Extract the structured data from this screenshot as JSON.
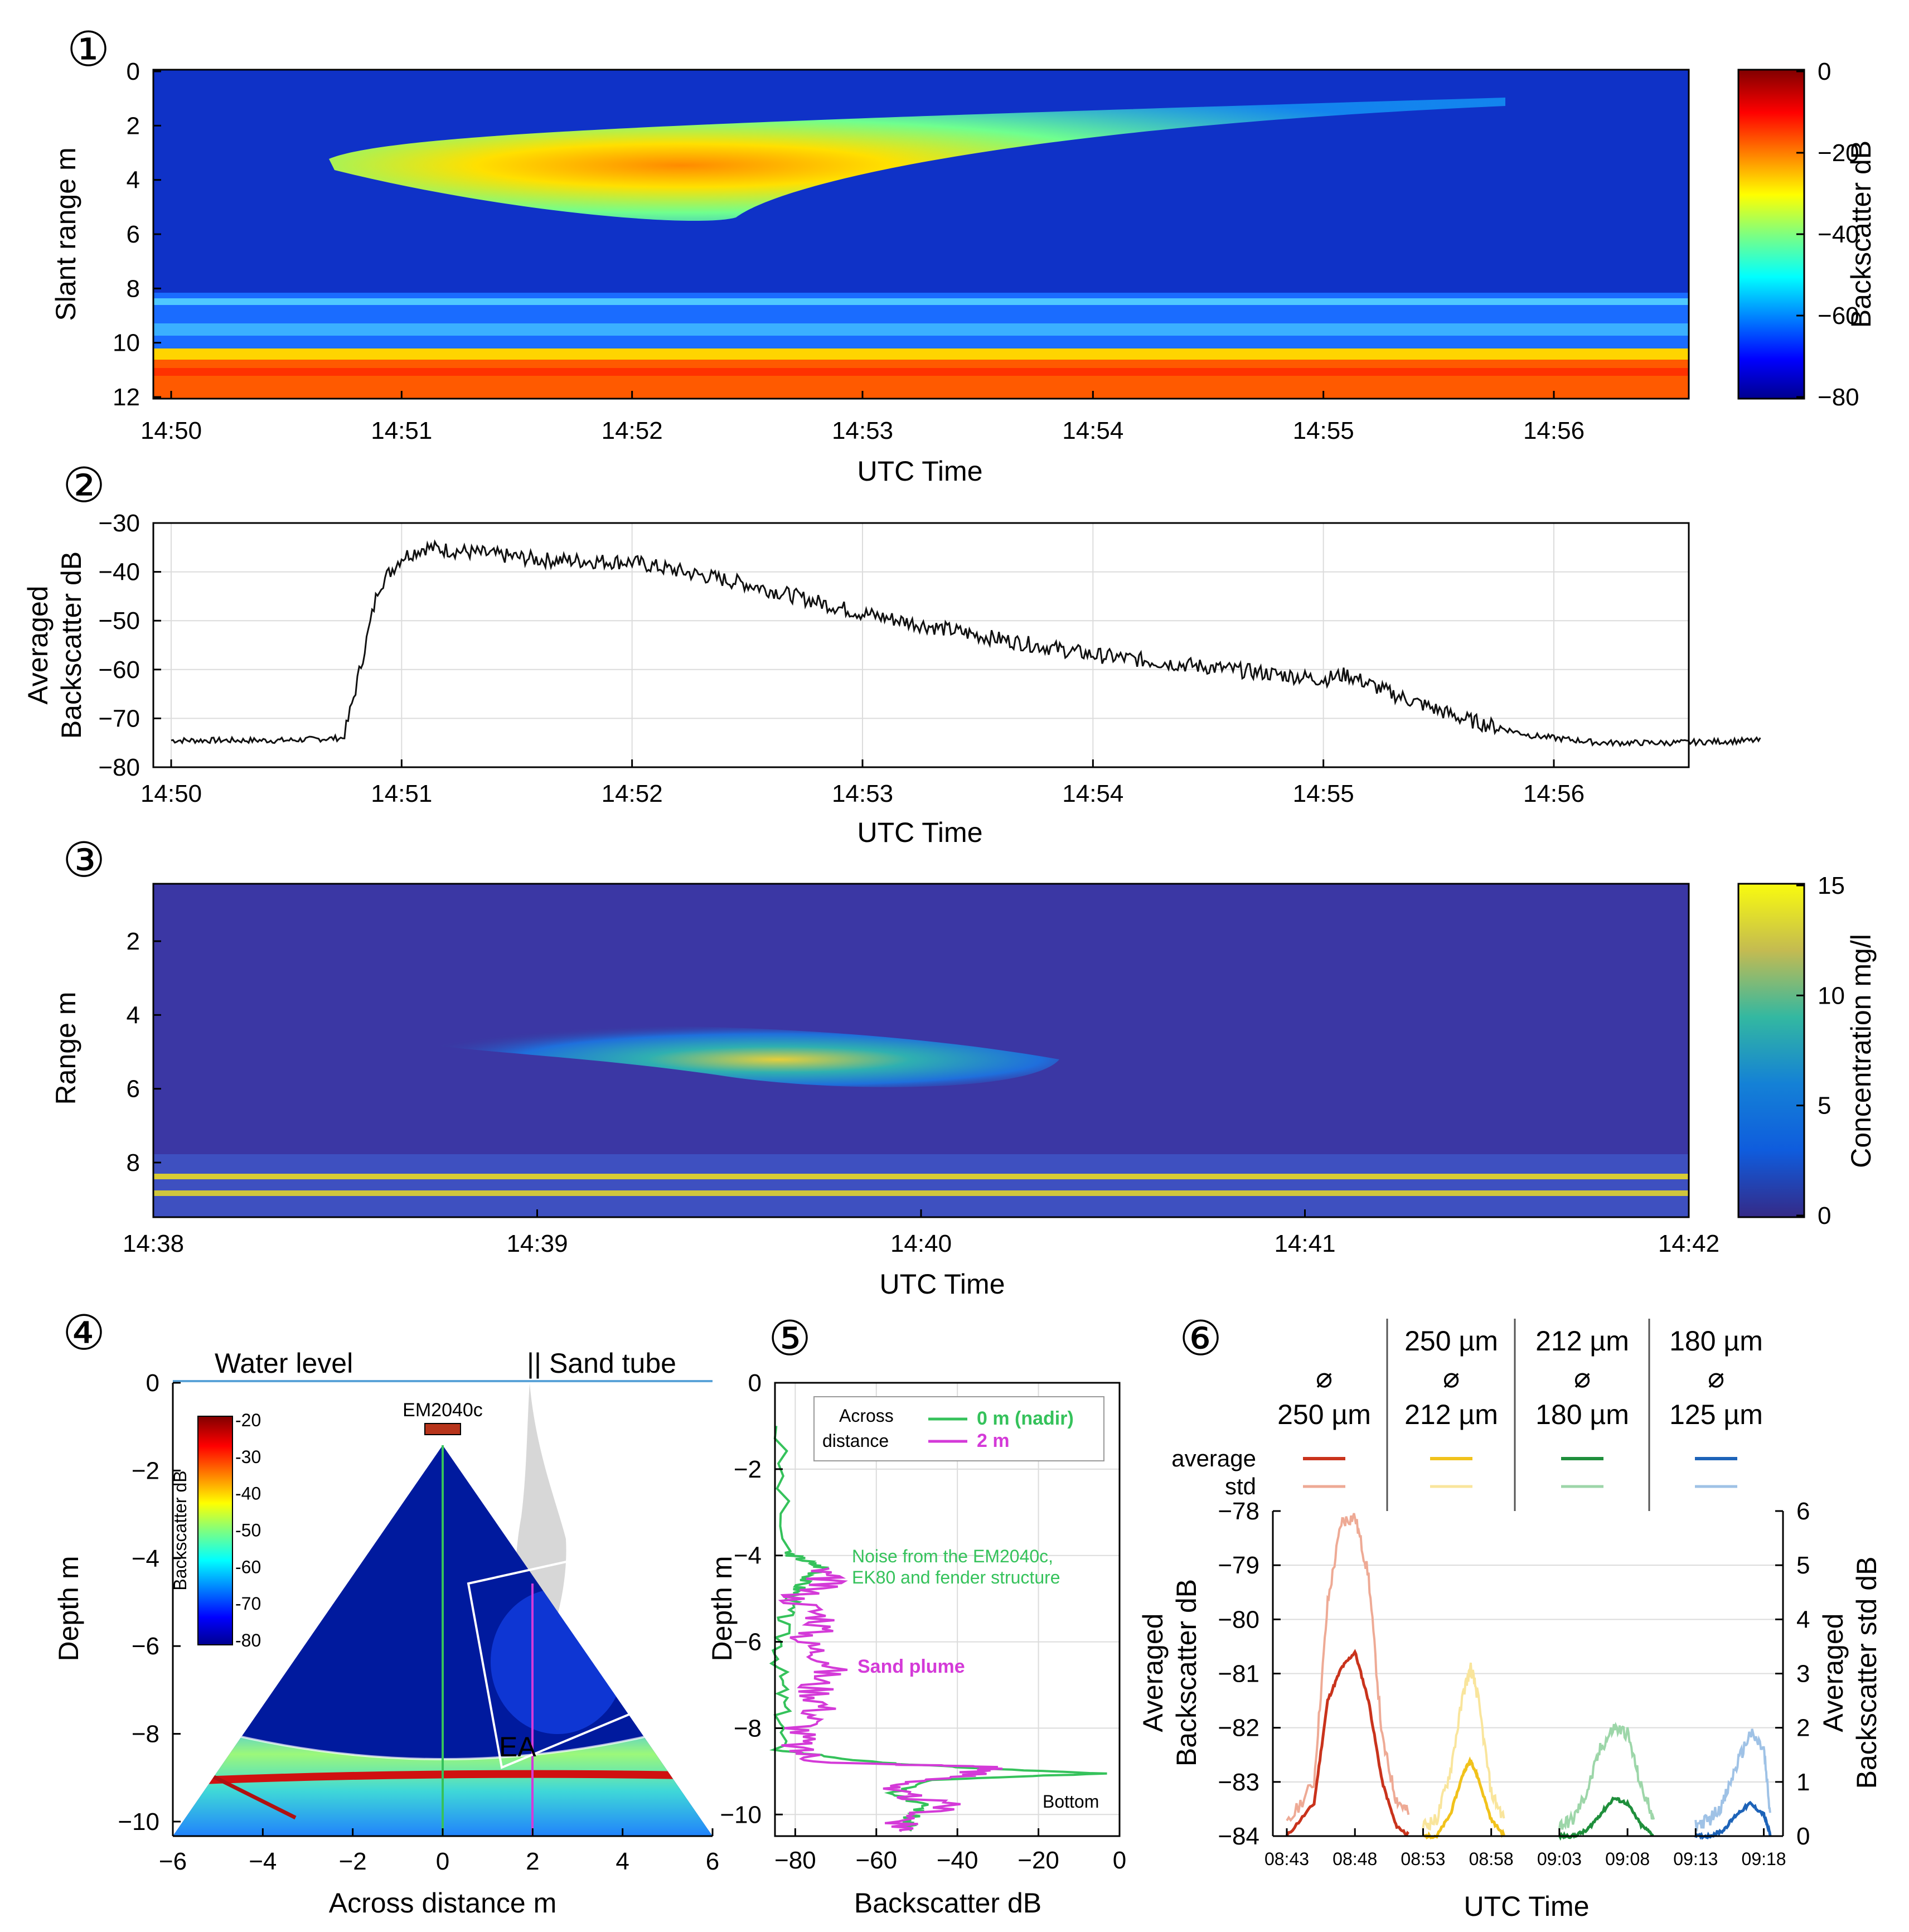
{
  "colors": {
    "jet_low": "#00008f",
    "jet_high": "#800000",
    "parula_low": "#352a87",
    "parula_high": "#f9fb0e",
    "nadir": "#35c25b",
    "offset2m": "#d43ad8",
    "d250_avg": "#c9331c",
    "d250_std": "#eeaa95",
    "d212_avg": "#f1c21b",
    "d212_std": "#f9e59c",
    "d180_avg": "#1f8f3c",
    "d180_std": "#9dd6a9",
    "d125_avg": "#1d63b8",
    "d125_std": "#9fc2e6",
    "water_line": "#5ba3d8",
    "em_box": "#b7341b"
  },
  "chart_data": [
    {
      "id": "panel-1",
      "panel_label": "①",
      "type": "heatmap",
      "xlabel": "UTC Time",
      "ylabel": "Slant range m",
      "yticks": [
        "0",
        "2",
        "4",
        "6",
        "8",
        "10",
        "12"
      ],
      "xticks": [
        "14:50",
        "14:51",
        "14:52",
        "14:53",
        "14:54",
        "14:55",
        "14:56"
      ],
      "colorbar": {
        "label": "Backscatter dB",
        "ticks": [
          "0",
          "−20",
          "−40",
          "−60",
          "−80"
        ],
        "range": [
          -80,
          0
        ]
      }
    },
    {
      "id": "panel-2",
      "panel_label": "②",
      "type": "line",
      "xlabel": "UTC Time",
      "ylabel": [
        "Averaged",
        "Backscatter dB"
      ],
      "ylim": [
        -80,
        -30
      ],
      "yticks": [
        "−30",
        "−40",
        "−50",
        "−60",
        "−70",
        "−80"
      ],
      "xticks": [
        "14:50",
        "14:51",
        "14:52",
        "14:53",
        "14:54",
        "14:55",
        "14:56"
      ],
      "x_minutes": [
        0,
        0.5,
        0.75,
        0.8,
        0.9,
        1.0,
        1.1,
        1.3,
        1.6,
        2.0,
        2.5,
        3.0,
        3.5,
        4.0,
        4.5,
        4.8,
        5.0,
        5.1,
        5.3,
        5.6,
        5.9,
        6.2,
        6.5,
        6.9
      ],
      "series": [
        {
          "name": "Averaged backscatter",
          "values": [
            -74.5,
            -74.5,
            -74,
            -64,
            -43,
            -37,
            -35,
            -36,
            -37.5,
            -38,
            -42.5,
            -48.5,
            -53,
            -57,
            -59.5,
            -61,
            -62,
            -61,
            -65,
            -70,
            -73.5,
            -75,
            -75,
            -74.5
          ]
        }
      ]
    },
    {
      "id": "panel-3",
      "panel_label": "③",
      "type": "heatmap",
      "xlabel": "UTC Time",
      "ylabel": "Range m",
      "yticks": [
        "2",
        "4",
        "6",
        "8"
      ],
      "xticks": [
        "14:38",
        "14:39",
        "14:40",
        "14:41",
        "14:42"
      ],
      "colorbar": {
        "label": "Concentration mg/l",
        "ticks": [
          "15",
          "10",
          "5",
          "0"
        ],
        "range": [
          0,
          15
        ]
      }
    },
    {
      "id": "panel-4",
      "panel_label": "④",
      "type": "heatmap",
      "xlabel": "Across distance m",
      "ylabel": "Depth m",
      "xticks": [
        "−6",
        "−4",
        "−2",
        "0",
        "2",
        "4",
        "6"
      ],
      "yticks": [
        "0",
        "−2",
        "−4",
        "−6",
        "−8",
        "−10"
      ],
      "annotations": {
        "water_level": "Water level",
        "sand_tube": "Sand tube",
        "sand_tube_marker": "||",
        "instrument": "EM2040c",
        "ea": "EA"
      },
      "colorbar": {
        "label": "Backscatter dB",
        "ticks": [
          "-20",
          "-30",
          "-40",
          "-50",
          "-60",
          "-70",
          "-80"
        ],
        "range": [
          -80,
          -20
        ]
      }
    },
    {
      "id": "panel-5",
      "panel_label": "⑤",
      "type": "line",
      "xlabel": "Backscatter dB",
      "ylabel": "Depth m",
      "xlim": [
        -85,
        0
      ],
      "ylim": [
        -10.5,
        0
      ],
      "xticks": [
        "−80",
        "−60",
        "−40",
        "−20",
        "0"
      ],
      "yticks": [
        "0",
        "−2",
        "−4",
        "−6",
        "−8",
        "−10"
      ],
      "legend": {
        "title": [
          "Across",
          "distance"
        ],
        "entries": [
          "0 m (nadir)",
          "2 m"
        ]
      },
      "annotations": {
        "noise": [
          "Noise from the EM2040c,",
          "EK80 and fender structure"
        ],
        "plume": "Sand plume",
        "bottom": "Bottom"
      },
      "series": [
        {
          "name": "0 m (nadir)",
          "depth": [
            -1,
            -3.9,
            -4.1,
            -4.3,
            -4.6,
            -4.9,
            -5.5,
            -6.5,
            -7.5,
            -8.5,
            -8.8,
            -8.95,
            -9.05,
            -9.2,
            -9.5,
            -9.8,
            -10.1,
            -10.4
          ],
          "values": [
            -84,
            -83,
            -78,
            -73,
            -78,
            -80,
            -83,
            -84,
            -83,
            -84,
            -60,
            -30,
            -5,
            -45,
            -55,
            -48,
            -52,
            -52
          ]
        },
        {
          "name": "2 m",
          "depth": [
            -4.3,
            -4.6,
            -5,
            -5.5,
            -6,
            -6.5,
            -7,
            -7.5,
            -8,
            -8.5,
            -8.8,
            -8.9,
            -9.1,
            -9.4,
            -9.8,
            -10.2,
            -10.4
          ],
          "values": [
            -75,
            -72,
            -80,
            -72,
            -78,
            -70,
            -75,
            -73,
            -78,
            -80,
            -72,
            -30,
            -38,
            -60,
            -42,
            -55,
            -50
          ]
        }
      ]
    },
    {
      "id": "panel-6",
      "panel_label": "⑥",
      "type": "line",
      "xlabel": "UTC Time",
      "ylabel": [
        "Averaged",
        "Backscatter dB"
      ],
      "y2label": [
        "Averaged",
        "Backscatter std dB"
      ],
      "ylim": [
        -84,
        -78
      ],
      "y2lim": [
        0,
        6
      ],
      "yticks": [
        "−78",
        "−79",
        "−80",
        "−81",
        "−82",
        "−83",
        "−84"
      ],
      "y2ticks": [
        "6",
        "5",
        "4",
        "3",
        "2",
        "1",
        "0"
      ],
      "xticks": [
        "08:43",
        "08:48",
        "08:53",
        "08:58",
        "09:03",
        "09:08",
        "09:13",
        "09:18"
      ],
      "legend_rows": [
        "average",
        "std"
      ],
      "sizes": [
        {
          "upper": "",
          "symbol": "⌀",
          "lower": "250 µm"
        },
        {
          "upper": "250 µm",
          "symbol": "⌀",
          "lower": "212 µm"
        },
        {
          "upper": "212 µm",
          "symbol": "⌀",
          "lower": "180 µm"
        },
        {
          "upper": "180 µm",
          "symbol": "⌀",
          "lower": "125 µm"
        }
      ],
      "series": [
        {
          "name": "250-250 average",
          "t": [
            0,
            2,
            3,
            4,
            5,
            6,
            7,
            8,
            9
          ],
          "values": [
            -84,
            -83.4,
            -81.5,
            -80.9,
            -80.6,
            -81.5,
            -83,
            -83.8,
            -84
          ]
        },
        {
          "name": "250-250 std",
          "t": [
            0,
            2,
            3,
            4,
            5,
            6,
            7,
            8,
            9
          ],
          "values": [
            0.2,
            1,
            4.3,
            5.8,
            5.9,
            4.8,
            1.8,
            0.7,
            0.4
          ]
        },
        {
          "name": "250-212 average",
          "t": [
            10,
            11,
            12,
            13,
            13.5,
            14,
            15,
            16
          ],
          "values": [
            -84,
            -84,
            -83.6,
            -82.8,
            -82.6,
            -82.9,
            -83.7,
            -84
          ]
        },
        {
          "name": "250-212 std",
          "t": [
            10,
            11,
            12,
            13,
            13.5,
            14,
            15,
            16
          ],
          "values": [
            0.2,
            0.3,
            1.2,
            2.7,
            3.1,
            2.6,
            0.8,
            0.3
          ]
        },
        {
          "name": "212-180 average",
          "t": [
            20,
            21,
            22,
            23,
            24,
            25,
            26,
            27
          ],
          "values": [
            -84,
            -84,
            -83.9,
            -83.6,
            -83.3,
            -83.4,
            -83.8,
            -84
          ]
        },
        {
          "name": "212-180 std",
          "t": [
            20,
            21,
            22,
            23,
            24,
            25,
            26,
            27
          ],
          "values": [
            0.2,
            0.3,
            0.8,
            1.6,
            2,
            1.9,
            0.9,
            0.3
          ]
        },
        {
          "name": "180-125 average",
          "t": [
            30,
            31,
            32,
            33,
            34,
            35,
            35.5
          ],
          "values": [
            -84,
            -84,
            -83.9,
            -83.6,
            -83.4,
            -83.6,
            -84
          ]
        },
        {
          "name": "180-125 std",
          "t": [
            30,
            31,
            32,
            33,
            34,
            35,
            35.5
          ],
          "values": [
            0.2,
            0.3,
            0.6,
            1.3,
            1.9,
            1.6,
            0.3
          ]
        }
      ]
    }
  ]
}
